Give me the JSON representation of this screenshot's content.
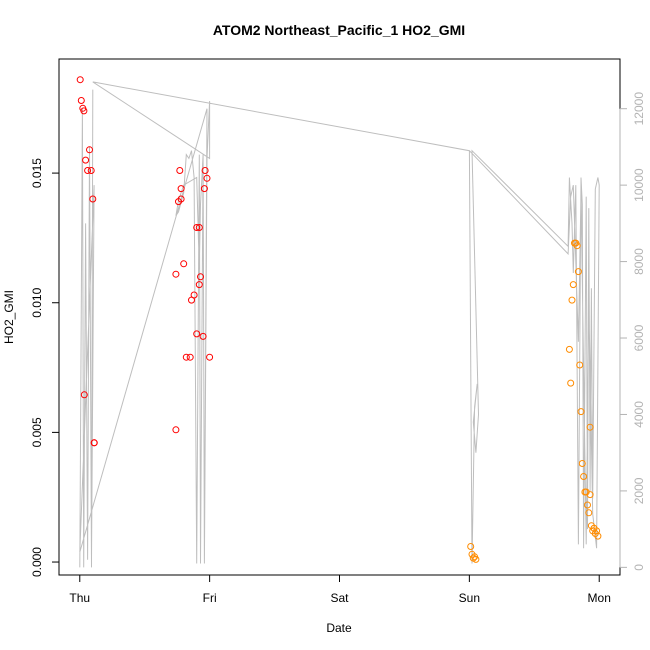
{
  "chart_data": {
    "type": "scatter",
    "title": "ATOM2 Northeast_Pacific_1 HO2_GMI",
    "xlabel": "Date",
    "ylabel": "HO2_GMI",
    "x_ticks": [
      "Thu",
      "Fri",
      "Sat",
      "Sun",
      "Mon"
    ],
    "xlim": [
      -0.16,
      4.16
    ],
    "y_ticks": [
      "0.000",
      "0.005",
      "0.010",
      "0.015"
    ],
    "ylim": [
      -0.0005,
      0.0194
    ],
    "y2_ticks": [
      "0",
      "2000",
      "4000",
      "6000",
      "8000",
      "10000",
      "12000"
    ],
    "y2lim": [
      -200,
      13300
    ],
    "colors": {
      "series_1": "#ff0000",
      "series_2": "#ff8c00",
      "altitude_line": "#bebebe",
      "axis": "#000000",
      "y2_axis": "#b3b3b3"
    },
    "series": [
      {
        "color": "#ff0000",
        "x": [
          0.003,
          0.012,
          0.023,
          0.032,
          0.045,
          0.06,
          0.075,
          0.088,
          0.1,
          0.11,
          0.035,
          0.112,
          0.74,
          0.74,
          0.77,
          0.76,
          0.78,
          0.78,
          0.8,
          0.82,
          0.85,
          0.86,
          0.88,
          0.9,
          0.9,
          0.92,
          0.92,
          0.95,
          0.93,
          0.96,
          0.965,
          0.98,
          1.0
        ],
        "y": [
          0.0186,
          0.0178,
          0.0175,
          0.0174,
          0.0155,
          0.0151,
          0.0159,
          0.0151,
          0.014,
          0.0046,
          0.00645,
          0.0046,
          0.0111,
          0.0051,
          0.0151,
          0.0139,
          0.0144,
          0.014,
          0.0115,
          0.0079,
          0.0079,
          0.0101,
          0.0103,
          0.0088,
          0.0129,
          0.0107,
          0.0129,
          0.0087,
          0.011,
          0.0144,
          0.0151,
          0.0148,
          0.0079
        ]
      },
      {
        "color": "#ff8c00",
        "x": [
          3.01,
          3.02,
          3.03,
          3.04,
          3.05,
          3.77,
          3.78,
          3.79,
          3.8,
          3.81,
          3.82,
          3.83,
          3.84,
          3.85,
          3.86,
          3.87,
          3.88,
          3.89,
          3.9,
          3.91,
          3.92,
          3.93,
          3.94,
          3.95,
          3.96,
          3.97,
          3.98,
          3.99,
          3.93,
          3.96
        ],
        "y": [
          0.0006,
          0.0003,
          0.00015,
          0.0002,
          0.0001,
          0.0082,
          0.0069,
          0.0101,
          0.0107,
          0.0123,
          0.0123,
          0.0122,
          0.0112,
          0.0076,
          0.0058,
          0.0038,
          0.0033,
          0.0027,
          0.0027,
          0.0022,
          0.0019,
          0.0026,
          0.0014,
          0.0012,
          0.0013,
          0.0011,
          0.0012,
          0.001,
          0.0052,
          0.0013
        ]
      }
    ],
    "altitude_line": {
      "x": [
        0.0,
        0.02,
        0.03,
        0.045,
        0.06,
        0.075,
        0.09,
        0.1,
        0.09,
        0.11,
        0.0,
        0.98,
        0.96,
        0.95,
        0.93,
        0.92,
        0.9,
        0.88,
        0.86,
        0.84,
        0.82,
        0.8,
        0.76,
        0.74,
        0.76,
        0.8,
        0.9,
        0.92,
        0.93,
        0.95,
        0.96,
        0.98,
        1.0,
        1.0,
        0.1,
        3.0,
        3.02,
        3.04,
        3.06,
        3.03,
        3.05,
        3.07,
        3.02,
        3.76,
        3.77,
        3.79,
        3.8,
        3.82,
        3.84,
        3.86,
        3.87,
        3.88,
        3.9,
        3.91,
        3.92,
        3.93,
        3.94,
        3.95,
        3.97,
        3.99,
        4.0,
        3.98,
        3.95,
        3.92,
        3.9,
        3.86,
        3.84,
        3.8,
        3.78,
        3.76,
        3.0
      ],
      "y": [
        0,
        12000,
        0,
        9000,
        200,
        11000,
        0,
        12500,
        200,
        10000,
        400,
        12000,
        200,
        10800,
        100,
        10800,
        100,
        10200,
        10900,
        10700,
        10800,
        9800,
        9300,
        9200,
        9600,
        10000,
        10200,
        7800,
        9500,
        10800,
        100,
        10700,
        12200,
        10700,
        12700,
        10900,
        100,
        4200,
        4800,
        3800,
        3000,
        4000,
        10900,
        8400,
        10200,
        9000,
        7700,
        10000,
        600,
        10200,
        9500,
        500,
        9700,
        1000,
        9400,
        2000,
        7300,
        1800,
        9900,
        10200,
        10000,
        500,
        1400,
        7000,
        600,
        9800,
        5900,
        10000,
        9700,
        8200,
        10900
      ]
    }
  }
}
